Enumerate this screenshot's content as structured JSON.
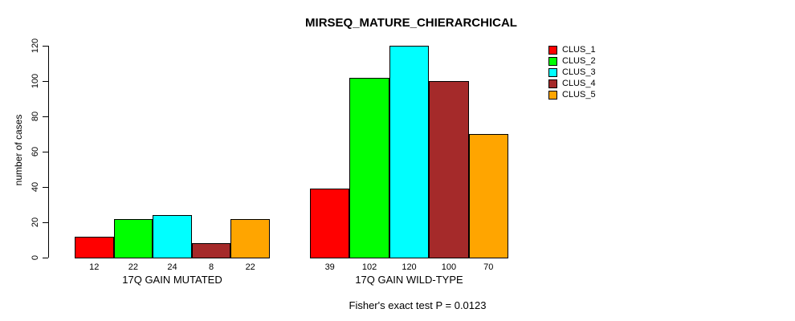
{
  "chart_data": {
    "type": "bar",
    "title": "MIRSEQ_MATURE_CHIERARCHICAL",
    "ylabel": "number of cases",
    "ylim": [
      0,
      120
    ],
    "yticks": [
      0,
      20,
      40,
      60,
      80,
      100,
      120
    ],
    "grid": false,
    "legend_position": "right",
    "bar_border_color": "#000000",
    "bar_value_labels": true,
    "categories": [
      "17Q GAIN MUTATED",
      "17Q GAIN WILD-TYPE"
    ],
    "series": [
      {
        "name": "CLUS_1",
        "color": "#FF0000",
        "values": [
          12,
          39
        ]
      },
      {
        "name": "CLUS_2",
        "color": "#00FF00",
        "values": [
          22,
          102
        ]
      },
      {
        "name": "CLUS_3",
        "color": "#00FFFF",
        "values": [
          24,
          120
        ]
      },
      {
        "name": "CLUS_4",
        "color": "#A52A2A",
        "values": [
          8,
          100
        ]
      },
      {
        "name": "CLUS_5",
        "color": "#FFA500",
        "values": [
          22,
          70
        ]
      }
    ],
    "annotation": "Fisher's exact test P = 0.0123"
  }
}
